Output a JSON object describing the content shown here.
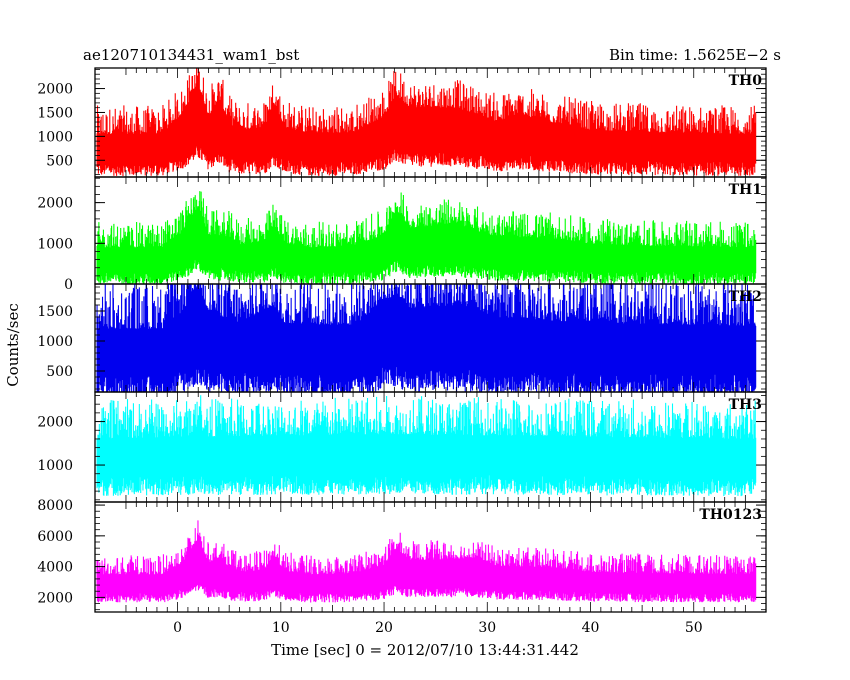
{
  "header": {
    "title": "ae120710134431_wam1_bst",
    "bin_time": "Bin time: 1.5625E−2 s"
  },
  "chart_data": {
    "type": "line",
    "xlabel": "Time [sec] 0 = 2012/07/10 13:44:31.442",
    "ylabel": "Counts/sec",
    "xlim": [
      -8,
      57
    ],
    "x_ticks": [
      0,
      10,
      20,
      30,
      40,
      50
    ],
    "x_range": [
      -7.8,
      56.0
    ],
    "panels": [
      {
        "name": "TH0",
        "color": "#ff0000",
        "ylim": [
          150,
          2430
        ],
        "y_ticks": [
          500,
          1000,
          1500,
          2000
        ],
        "baseline_low": 380,
        "baseline_high": 1050,
        "profile": [
          [
            -8,
            0
          ],
          [
            -1.5,
            0
          ],
          [
            0.5,
            0.6
          ],
          [
            2,
            1.4
          ],
          [
            3,
            0.5
          ],
          [
            4,
            1.0
          ],
          [
            5,
            0.3
          ],
          [
            6,
            0.1
          ],
          [
            8.5,
            0.2
          ],
          [
            9.3,
            0.9
          ],
          [
            10.3,
            0.2
          ],
          [
            13,
            0
          ],
          [
            17,
            0.05
          ],
          [
            20,
            0.5
          ],
          [
            21.2,
            1.1
          ],
          [
            22.5,
            0.75
          ],
          [
            27,
            0.75
          ],
          [
            29,
            0.55
          ],
          [
            31,
            0.35
          ],
          [
            33,
            0.55
          ],
          [
            36,
            0.35
          ],
          [
            40,
            0.12
          ],
          [
            46,
            0.05
          ],
          [
            56,
            0
          ]
        ]
      },
      {
        "name": "TH1",
        "color": "#00ff00",
        "ylim": [
          0,
          2630
        ],
        "y_ticks": [
          0,
          1000,
          2000
        ],
        "baseline_low": 200,
        "baseline_high": 900,
        "profile": [
          [
            -8,
            0
          ],
          [
            -1.5,
            0
          ],
          [
            0.5,
            0.5
          ],
          [
            2,
            1.3
          ],
          [
            3,
            0.4
          ],
          [
            5,
            0.35
          ],
          [
            6,
            0.1
          ],
          [
            8.5,
            0.2
          ],
          [
            9.3,
            0.7
          ],
          [
            10.3,
            0.15
          ],
          [
            13,
            0
          ],
          [
            17,
            0.05
          ],
          [
            20,
            0.4
          ],
          [
            21.2,
            1.2
          ],
          [
            22.5,
            0.6
          ],
          [
            27,
            0.8
          ],
          [
            28,
            0.6
          ],
          [
            31,
            0.35
          ],
          [
            36,
            0.3
          ],
          [
            40,
            0.12
          ],
          [
            46,
            0.05
          ],
          [
            56,
            0
          ]
        ]
      },
      {
        "name": "TH2",
        "color": "#0000ee",
        "ylim": [
          150,
          1950
        ],
        "y_ticks": [
          500,
          1000,
          1500
        ],
        "baseline_low": 300,
        "baseline_high": 1200,
        "profile": [
          [
            -8,
            0
          ],
          [
            -1.5,
            0
          ],
          [
            0.5,
            0.3
          ],
          [
            2,
            0.7
          ],
          [
            3,
            0.3
          ],
          [
            6,
            0.1
          ],
          [
            9.3,
            0.4
          ],
          [
            10.3,
            0.1
          ],
          [
            17,
            0.05
          ],
          [
            21.2,
            0.6
          ],
          [
            22.5,
            0.35
          ],
          [
            27,
            0.4
          ],
          [
            31,
            0.2
          ],
          [
            40,
            0.1
          ],
          [
            56,
            0.05
          ]
        ]
      },
      {
        "name": "TH3",
        "color": "#00ffff",
        "ylim": [
          150,
          2680
        ],
        "y_ticks": [
          1000,
          2000
        ],
        "baseline_low": 600,
        "baseline_high": 1600,
        "profile": [
          [
            -8,
            0
          ],
          [
            1,
            0.05
          ],
          [
            2,
            0.25
          ],
          [
            3,
            0.05
          ],
          [
            21,
            0.1
          ],
          [
            56,
            0
          ]
        ]
      },
      {
        "name": "TH0123",
        "color": "#ff00ff",
        "ylim": [
          1050,
          8200
        ],
        "y_ticks": [
          2000,
          4000,
          6000,
          8000
        ],
        "baseline_low": 2100,
        "baseline_high": 3500,
        "profile": [
          [
            -8,
            0
          ],
          [
            -1.5,
            0
          ],
          [
            0.5,
            0.5
          ],
          [
            2,
            1.5
          ],
          [
            3,
            0.5
          ],
          [
            4,
            0.7
          ],
          [
            5,
            0.3
          ],
          [
            6,
            0.1
          ],
          [
            8.5,
            0.2
          ],
          [
            9.3,
            0.8
          ],
          [
            10.3,
            0.15
          ],
          [
            13,
            0
          ],
          [
            17,
            0.05
          ],
          [
            20,
            0.4
          ],
          [
            21.2,
            1.1
          ],
          [
            22.5,
            0.6
          ],
          [
            27,
            0.65
          ],
          [
            28.5,
            0.7
          ],
          [
            31,
            0.35
          ],
          [
            36,
            0.3
          ],
          [
            40,
            0.1
          ],
          [
            46,
            0.05
          ],
          [
            56,
            0
          ]
        ]
      }
    ]
  }
}
